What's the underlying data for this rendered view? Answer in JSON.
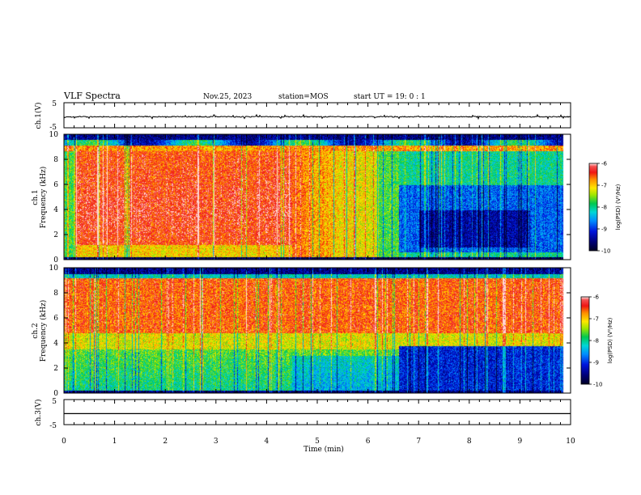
{
  "header": {
    "title": "VLF Spectra",
    "date": "Nov.25, 2023",
    "station": "station=MOS",
    "start_ut": "start  UT =   19: 0  : 1"
  },
  "chart_data": [
    {
      "type": "line",
      "name": "ch1-waveform",
      "ylabel": "ch.1(V)",
      "yticks": [
        "5",
        "-5"
      ],
      "ylim": [
        -5,
        5
      ],
      "xlim": [
        0,
        10
      ],
      "signal_level": -0.6
    },
    {
      "type": "heatmap",
      "name": "ch1-spectrogram",
      "ylabel_top": "ch.1",
      "ylabel": "Frequency (kHz)",
      "yticks": [
        "0",
        "2",
        "4",
        "6",
        "8",
        "10"
      ],
      "ylim": [
        0,
        10
      ],
      "xlim": [
        0,
        10
      ],
      "data_end_min": 9.85,
      "colorbar": {
        "label": "log(PSD) (V²/Hz)",
        "ticks": [
          "-6",
          "-7",
          "-8",
          "-9",
          "-10"
        ],
        "range": [
          -10,
          -6
        ]
      }
    },
    {
      "type": "heatmap",
      "name": "ch2-spectrogram",
      "ylabel_top": "ch.2",
      "ylabel": "Frequency (kHz)",
      "yticks": [
        "0",
        "2",
        "4",
        "6",
        "8",
        "10"
      ],
      "ylim": [
        0,
        10
      ],
      "xlim": [
        0,
        10
      ],
      "data_end_min": 9.85,
      "colorbar": {
        "label": "log(PSD) (V²/Hz)",
        "ticks": [
          "-6",
          "-7",
          "-8",
          "-9",
          "-10"
        ],
        "range": [
          -10,
          -6
        ]
      }
    },
    {
      "type": "line",
      "name": "ch3-waveform",
      "ylabel": "ch.3(V)",
      "yticks": [
        "5",
        "-5"
      ],
      "ylim": [
        -5,
        5
      ],
      "xlim": [
        0,
        10
      ],
      "signal_level": -0.6
    }
  ],
  "xaxis": {
    "label": "Time (min)",
    "ticks": [
      "0",
      "1",
      "2",
      "3",
      "4",
      "5",
      "6",
      "7",
      "8",
      "9",
      "10"
    ],
    "range": [
      0,
      10
    ]
  },
  "colors": {
    "red": "#f01414",
    "orange": "#ff8c00",
    "yellow": "#ffe600",
    "green": "#00c850",
    "cyan": "#00c8e6",
    "blue": "#0014dc",
    "navy": "#000050"
  }
}
